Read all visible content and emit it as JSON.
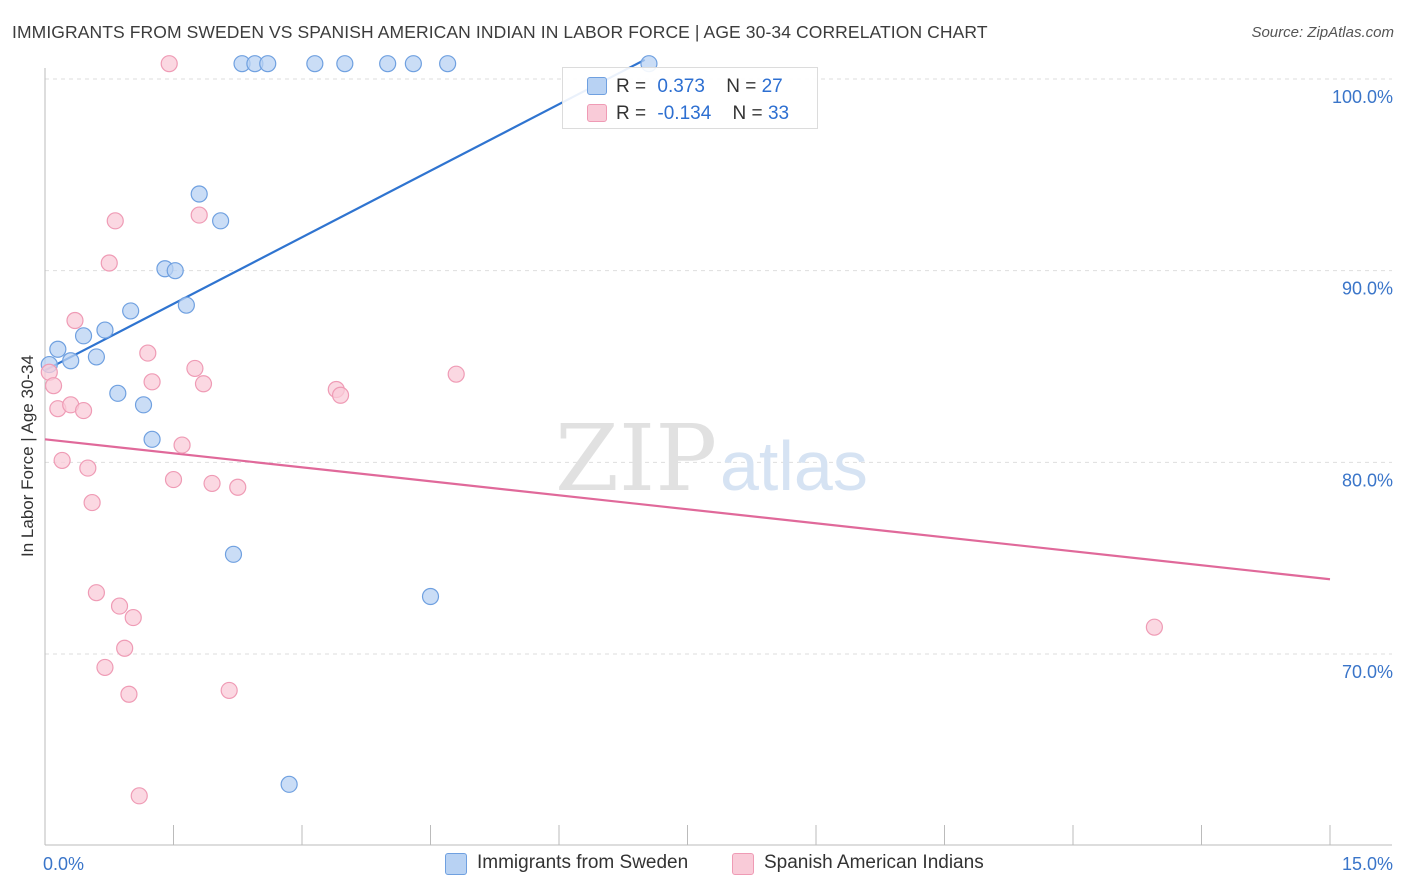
{
  "title": "IMMIGRANTS FROM SWEDEN VS SPANISH AMERICAN INDIAN IN LABOR FORCE | AGE 30-34 CORRELATION CHART",
  "source": "Source: ZipAtlas.com",
  "watermark": {
    "zip": "ZIP",
    "atlas": "atlas"
  },
  "legend_top": [
    {
      "r_label": "R =",
      "r_value": "0.373",
      "n_label": "N =",
      "n_value": "27",
      "color": "#a9c8f0"
    },
    {
      "r_label": "R =",
      "r_value": "-0.134",
      "n_label": "N =",
      "n_value": "33",
      "color": "#f6b9cb"
    }
  ],
  "chart_data": {
    "type": "scatter",
    "title": "IMMIGRANTS FROM SWEDEN VS SPANISH AMERICAN INDIAN IN LABOR FORCE | AGE 30-34 CORRELATION CHART",
    "xlabel": "",
    "ylabel": "In Labor Force | Age 30-34",
    "xlim": [
      0,
      15
    ],
    "ylim": [
      61,
      101
    ],
    "x_tick_labels": [
      "0.0%",
      "15.0%"
    ],
    "y_tick_labels": [
      "100.0%",
      "90.0%",
      "80.0%",
      "70.0%"
    ],
    "y_ticks": [
      100,
      90,
      80,
      70
    ],
    "grid": true,
    "legend_position": "bottom",
    "series": [
      {
        "name": "Immigrants from Sweden",
        "color": "#6fa0e0",
        "fill": "#b8d2f3",
        "line_color": "#2f74d0",
        "trend": {
          "x": [
            0.0,
            7.0
          ],
          "y": [
            84.8,
            101.0
          ]
        },
        "points": [
          {
            "x": 0.05,
            "y": 85.1
          },
          {
            "x": 0.15,
            "y": 85.9
          },
          {
            "x": 0.3,
            "y": 85.3
          },
          {
            "x": 0.45,
            "y": 86.6
          },
          {
            "x": 0.6,
            "y": 85.5
          },
          {
            "x": 0.7,
            "y": 86.9
          },
          {
            "x": 0.85,
            "y": 83.6
          },
          {
            "x": 1.0,
            "y": 87.9
          },
          {
            "x": 1.15,
            "y": 83.0
          },
          {
            "x": 1.25,
            "y": 81.2
          },
          {
            "x": 1.4,
            "y": 90.1
          },
          {
            "x": 1.52,
            "y": 90.0
          },
          {
            "x": 1.65,
            "y": 88.2
          },
          {
            "x": 1.8,
            "y": 94.0
          },
          {
            "x": 2.05,
            "y": 92.6
          },
          {
            "x": 2.2,
            "y": 75.2
          },
          {
            "x": 2.3,
            "y": 100.8
          },
          {
            "x": 2.45,
            "y": 100.8
          },
          {
            "x": 2.6,
            "y": 100.8
          },
          {
            "x": 2.85,
            "y": 63.2
          },
          {
            "x": 3.15,
            "y": 100.8
          },
          {
            "x": 3.5,
            "y": 100.8
          },
          {
            "x": 4.0,
            "y": 100.8
          },
          {
            "x": 4.3,
            "y": 100.8
          },
          {
            "x": 4.5,
            "y": 73.0
          },
          {
            "x": 4.7,
            "y": 100.8
          },
          {
            "x": 7.05,
            "y": 100.8
          }
        ]
      },
      {
        "name": "Spanish American Indians",
        "color": "#ef9bb5",
        "fill": "#f9cbd8",
        "line_color": "#e0699a",
        "trend": {
          "x": [
            0.0,
            15.0
          ],
          "y": [
            81.2,
            73.9
          ]
        },
        "points": [
          {
            "x": 0.05,
            "y": 84.7
          },
          {
            "x": 0.1,
            "y": 84.0
          },
          {
            "x": 0.15,
            "y": 82.8
          },
          {
            "x": 0.2,
            "y": 80.1
          },
          {
            "x": 0.3,
            "y": 83.0
          },
          {
            "x": 0.35,
            "y": 87.4
          },
          {
            "x": 0.45,
            "y": 82.7
          },
          {
            "x": 0.5,
            "y": 79.7
          },
          {
            "x": 0.55,
            "y": 77.9
          },
          {
            "x": 0.6,
            "y": 73.2
          },
          {
            "x": 0.7,
            "y": 69.3
          },
          {
            "x": 0.75,
            "y": 90.4
          },
          {
            "x": 0.82,
            "y": 92.6
          },
          {
            "x": 0.87,
            "y": 72.5
          },
          {
            "x": 0.93,
            "y": 70.3
          },
          {
            "x": 0.98,
            "y": 67.9
          },
          {
            "x": 1.03,
            "y": 71.9
          },
          {
            "x": 1.1,
            "y": 62.6
          },
          {
            "x": 1.2,
            "y": 85.7
          },
          {
            "x": 1.25,
            "y": 84.2
          },
          {
            "x": 1.45,
            "y": 100.8
          },
          {
            "x": 1.5,
            "y": 79.1
          },
          {
            "x": 1.6,
            "y": 80.9
          },
          {
            "x": 1.75,
            "y": 84.9
          },
          {
            "x": 1.8,
            "y": 92.9
          },
          {
            "x": 1.85,
            "y": 84.1
          },
          {
            "x": 1.95,
            "y": 78.9
          },
          {
            "x": 2.15,
            "y": 68.1
          },
          {
            "x": 2.25,
            "y": 78.7
          },
          {
            "x": 3.4,
            "y": 83.8
          },
          {
            "x": 3.45,
            "y": 83.5
          },
          {
            "x": 4.8,
            "y": 84.6
          },
          {
            "x": 12.95,
            "y": 71.4
          }
        ]
      }
    ]
  }
}
